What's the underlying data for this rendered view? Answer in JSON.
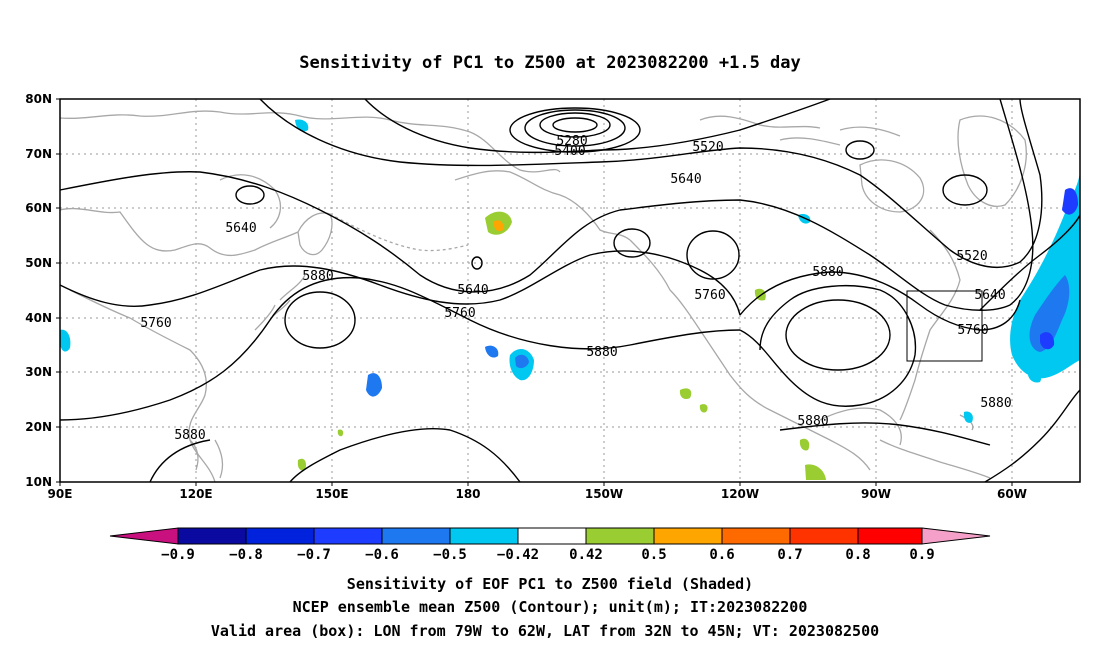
{
  "map": {
    "title": "Sensitivity of PC1 to Z500 at 2023082200 +1.5 day",
    "lat_labels": [
      "80N",
      "70N",
      "60N",
      "50N",
      "40N",
      "30N",
      "20N",
      "10N"
    ],
    "lon_labels": [
      "90E",
      "120E",
      "150E",
      "180",
      "150W",
      "120W",
      "90W",
      "60W"
    ],
    "contour_labels": [
      "5280",
      "5400",
      "5520",
      "5640",
      "5640",
      "5640",
      "5760",
      "5760",
      "5760",
      "5880",
      "5880",
      "5880",
      "5880",
      "5880",
      "5520",
      "5640",
      "5760",
      "5880"
    ],
    "valid_box": {
      "lon_from": "79W",
      "lon_to": "62W",
      "lat_from": "32N",
      "lat_to": "45N"
    },
    "colors": {
      "coast": "#a8a8a8",
      "contour": "#000000",
      "grid": "#9a9a9a"
    }
  },
  "colorbar": {
    "labels": [
      "−0.9",
      "−0.8",
      "−0.7",
      "−0.6",
      "−0.5",
      "−0.42",
      "0.42",
      "0.5",
      "0.6",
      "0.7",
      "0.8",
      "0.9"
    ],
    "colors": [
      "#c8107f",
      "#0a0aa0",
      "#0022dd",
      "#1e3cff",
      "#1e78f0",
      "#00c8f0",
      "#ffffff",
      "#9acd32",
      "#ffa500",
      "#ff6a00",
      "#ff3300",
      "#ff0000",
      "#f4a0c8"
    ]
  },
  "footer": {
    "line1": "Sensitivity of EOF PC1 to Z500 field (Shaded)",
    "line2": "NCEP ensemble mean Z500 (Contour); unit(m); IT:2023082200",
    "line3": "Valid area (box): LON from 79W to 62W, LAT from 32N to 45N; VT: 2023082500"
  }
}
